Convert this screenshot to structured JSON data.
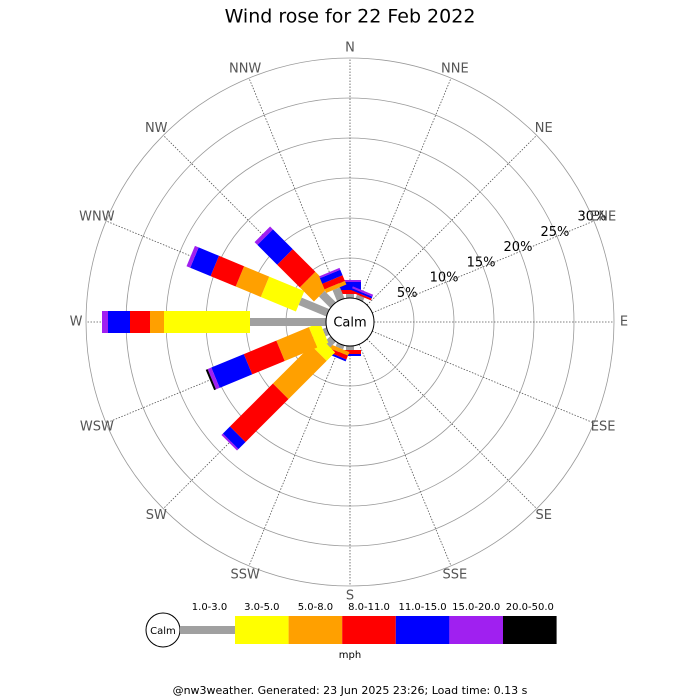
{
  "chart_data": {
    "type": "windrose",
    "title": "Wind rose for 22 Feb 2022",
    "categories": [
      "N",
      "NNE",
      "NE",
      "ENE",
      "E",
      "ESE",
      "SE",
      "SSE",
      "S",
      "SSW",
      "SW",
      "WSW",
      "W",
      "WNW",
      "NW",
      "NNW"
    ],
    "series": [
      {
        "name": "1.0-3.0",
        "color": "#a0a0a0",
        "values": [
          0.5,
          0.5,
          0,
          0,
          0,
          0,
          0,
          0,
          0.5,
          0.5,
          1,
          0.5,
          9.5,
          3.75,
          2,
          1.5
        ]
      },
      {
        "name": "3.0-5.0",
        "color": "#ffff00",
        "values": [
          0,
          0,
          0,
          0,
          0,
          0,
          0,
          0,
          0,
          0,
          1.5,
          1.5,
          10.75,
          4.75,
          0,
          0
        ]
      },
      {
        "name": "5.0-8.0",
        "color": "#ffa000",
        "values": [
          0,
          0,
          0,
          0,
          0,
          0,
          0,
          0,
          0,
          0.5,
          6.75,
          4.4,
          1.75,
          3.4,
          2.5,
          0.5
        ]
      },
      {
        "name": "8.0-11.0",
        "color": "#ff0000",
        "values": [
          0.5,
          0.25,
          0,
          0,
          0,
          0,
          0,
          0,
          0.5,
          0.5,
          7.6,
          4.4,
          2.5,
          3.4,
          4,
          0.75
        ]
      },
      {
        "name": "11.0-15.0",
        "color": "#0000ff",
        "values": [
          1,
          0.25,
          0,
          0,
          0,
          0,
          0,
          0,
          0.25,
          0.25,
          1.25,
          4.4,
          2.75,
          2.75,
          3.5,
          0.75
        ]
      },
      {
        "name": "15.0-20.0",
        "color": "#a020f0",
        "values": [
          0.25,
          0.25,
          0,
          0,
          0,
          0,
          0,
          0,
          0,
          0,
          0.25,
          0.5,
          0.75,
          0.5,
          0.5,
          0.25
        ]
      },
      {
        "name": "20.0-50.0",
        "color": "#000000",
        "values": [
          0,
          0,
          0,
          0,
          0,
          0,
          0,
          0,
          0,
          0,
          0,
          0.25,
          0,
          0,
          0,
          0
        ]
      }
    ],
    "rlim": [
      0,
      30
    ],
    "rticks": [
      {
        "value": 5,
        "label": "5%"
      },
      {
        "value": 10,
        "label": "10%"
      },
      {
        "value": 15,
        "label": "15%"
      },
      {
        "value": 20,
        "label": "20%"
      },
      {
        "value": 25,
        "label": "25%"
      },
      {
        "value": 30,
        "label": "30%"
      }
    ],
    "calm_label": "Calm",
    "unit_label": "mph",
    "footer": "@nw3weather. Generated: 23 Jun 2025 23:26; Load time: 0.13 s"
  }
}
